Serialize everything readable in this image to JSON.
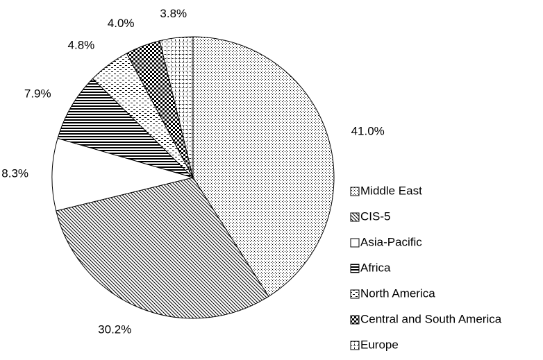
{
  "chart_data": {
    "type": "pie",
    "categories": [
      "Middle East",
      "CIS-5",
      "Asia-Pacific",
      "Africa",
      "North America",
      "Central and South America",
      "Europe"
    ],
    "values": [
      41.0,
      30.2,
      8.3,
      7.9,
      4.8,
      4.0,
      3.8
    ],
    "value_labels": [
      "41.0%",
      "30.2%",
      "8.3%",
      "7.9%",
      "4.8%",
      "4.0%",
      "3.8%"
    ],
    "legend": "right"
  }
}
